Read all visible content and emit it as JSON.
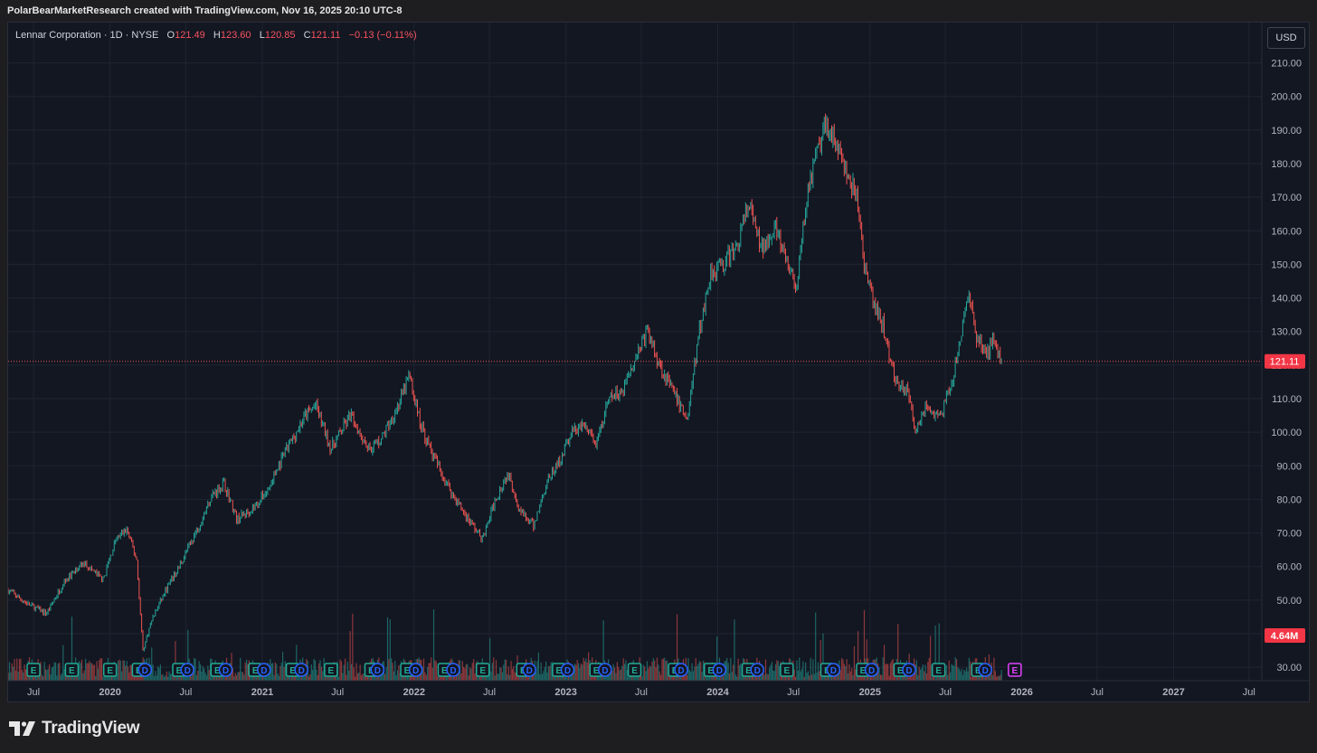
{
  "header": {
    "credit": "PolarBearMarketResearch created with TradingView.com, Nov 16, 2025 20:10 UTC-8"
  },
  "legend": {
    "symbol": "Lennar Corporation · 1D · NYSE",
    "o_label": "O",
    "o_value": "121.49",
    "h_label": "H",
    "h_value": "123.60",
    "l_label": "L",
    "l_value": "120.85",
    "c_label": "C",
    "c_value": "121.11",
    "change": "−0.13 (−0.11%)"
  },
  "currency_button": "USD",
  "price_badge": "121.11",
  "volume_badge": "4.64M",
  "footer": {
    "brand": "TradingView"
  },
  "colors": {
    "background": "#131722",
    "grid": "#1f2431",
    "up": "#26a69a",
    "down": "#ef5350",
    "badge": "#f23645",
    "text": "#b2b5be",
    "earnings_green": "#22ab94",
    "earnings_red": "#f23645",
    "dividend_blue": "#2962ff",
    "upcoming": "#e040fb"
  },
  "chart_data": {
    "type": "line",
    "title": "Lennar Corporation · 1D · NYSE",
    "x_axis": {
      "tick_labels": [
        "Jul",
        "2020",
        "Jul",
        "2021",
        "Jul",
        "2022",
        "Jul",
        "2023",
        "Jul",
        "2024",
        "Jul",
        "2025",
        "Jul",
        "2026",
        "Jul",
        "2027",
        "Jul"
      ],
      "range": [
        "2019-05",
        "2027-08"
      ]
    },
    "y_axis": {
      "tick_labels": [
        "30.00",
        "40.00",
        "50.00",
        "60.00",
        "70.00",
        "80.00",
        "90.00",
        "100.00",
        "110.00",
        "120.00",
        "130.00",
        "140.00",
        "150.00",
        "160.00",
        "170.00",
        "180.00",
        "190.00",
        "200.00",
        "210.00"
      ],
      "range": [
        26,
        222
      ]
    },
    "grid": true,
    "last_price": 121.11,
    "series": [
      {
        "values_date_price": [
          [
            "2019-05-01",
            53
          ],
          [
            "2019-06-15",
            49
          ],
          [
            "2019-08-01",
            46
          ],
          [
            "2019-09-15",
            56
          ],
          [
            "2019-11-01",
            61
          ],
          [
            "2019-12-15",
            56
          ],
          [
            "2020-01-15",
            68
          ],
          [
            "2020-02-10",
            71
          ],
          [
            "2020-03-05",
            62
          ],
          [
            "2020-03-20",
            35
          ],
          [
            "2020-04-10",
            44
          ],
          [
            "2020-05-10",
            52
          ],
          [
            "2020-06-15",
            60
          ],
          [
            "2020-08-01",
            72
          ],
          [
            "2020-09-01",
            81
          ],
          [
            "2020-10-01",
            85
          ],
          [
            "2020-11-01",
            74
          ],
          [
            "2020-12-15",
            78
          ],
          [
            "2021-01-15",
            83
          ],
          [
            "2021-03-01",
            95
          ],
          [
            "2021-04-15",
            105
          ],
          [
            "2021-05-10",
            108
          ],
          [
            "2021-06-15",
            95
          ],
          [
            "2021-08-01",
            105
          ],
          [
            "2021-09-15",
            95
          ],
          [
            "2021-10-15",
            98
          ],
          [
            "2021-12-01",
            110
          ],
          [
            "2021-12-20",
            117
          ],
          [
            "2022-01-15",
            103
          ],
          [
            "2022-02-15",
            93
          ],
          [
            "2022-04-01",
            82
          ],
          [
            "2022-05-01",
            76
          ],
          [
            "2022-06-15",
            68
          ],
          [
            "2022-07-15",
            80
          ],
          [
            "2022-08-15",
            88
          ],
          [
            "2022-09-15",
            76
          ],
          [
            "2022-10-15",
            72
          ],
          [
            "2022-11-15",
            85
          ],
          [
            "2022-12-15",
            91
          ],
          [
            "2023-01-15",
            100
          ],
          [
            "2023-02-15",
            102
          ],
          [
            "2023-03-15",
            96
          ],
          [
            "2023-04-15",
            110
          ],
          [
            "2023-05-15",
            112
          ],
          [
            "2023-06-15",
            122
          ],
          [
            "2023-07-15",
            130
          ],
          [
            "2023-08-15",
            120
          ],
          [
            "2023-09-15",
            112
          ],
          [
            "2023-10-20",
            104
          ],
          [
            "2023-11-15",
            128
          ],
          [
            "2023-12-15",
            148
          ],
          [
            "2024-01-15",
            150
          ],
          [
            "2024-02-15",
            155
          ],
          [
            "2024-03-15",
            168
          ],
          [
            "2024-04-15",
            154
          ],
          [
            "2024-05-15",
            162
          ],
          [
            "2024-06-15",
            150
          ],
          [
            "2024-07-10",
            143
          ],
          [
            "2024-08-01",
            170
          ],
          [
            "2024-09-01",
            185
          ],
          [
            "2024-09-20",
            192
          ],
          [
            "2024-10-15",
            185
          ],
          [
            "2024-11-10",
            175
          ],
          [
            "2024-12-01",
            170
          ],
          [
            "2024-12-20",
            148
          ],
          [
            "2025-01-10",
            138
          ],
          [
            "2025-02-01",
            132
          ],
          [
            "2025-03-01",
            116
          ],
          [
            "2025-04-01",
            112
          ],
          [
            "2025-04-20",
            101
          ],
          [
            "2025-05-15",
            108
          ],
          [
            "2025-06-15",
            104
          ],
          [
            "2025-07-15",
            113
          ],
          [
            "2025-08-10",
            130
          ],
          [
            "2025-08-25",
            142
          ],
          [
            "2025-09-15",
            128
          ],
          [
            "2025-10-10",
            123
          ],
          [
            "2025-10-25",
            129
          ],
          [
            "2025-11-14",
            121.11
          ]
        ]
      }
    ],
    "volume": {
      "unit": "M shares",
      "last": 4.64
    },
    "events": {
      "labels": [
        "E",
        "D"
      ],
      "marks": [
        "2019-07-01:E",
        "2019-10-01:E",
        "2020-01-01:E",
        "2020-03-10:E",
        "2020-03-25:D",
        "2020-06-15:E",
        "2020-07-05:D",
        "2020-09-15:E",
        "2020-10-05:D",
        "2020-12-15:E",
        "2021-01-05:D",
        "2021-03-15:E",
        "2021-04-05:D",
        "2021-06-15:E",
        "2021-09-20:E",
        "2021-10-05:D",
        "2021-12-15:E",
        "2022-01-05:D",
        "2022-03-15:E",
        "2022-04-05:D",
        "2022-06-15:E",
        "2022-09-20:E",
        "2022-10-05:D",
        "2022-12-15:E",
        "2023-01-05:D",
        "2023-03-15:E",
        "2023-04-05:D",
        "2023-06-15:E",
        "2023-09-20:E",
        "2023-10-05:D",
        "2023-12-15:E",
        "2024-01-05:D",
        "2024-03-15:E",
        "2024-04-05:D",
        "2024-06-15:E",
        "2024-09-20:E",
        "2024-10-05:D",
        "2024-12-15:E",
        "2025-01-05:D",
        "2025-03-15:E",
        "2025-04-05:D",
        "2025-06-15:E",
        "2025-09-18:E",
        "2025-10-05:D",
        "2025-12-15:E"
      ]
    }
  }
}
